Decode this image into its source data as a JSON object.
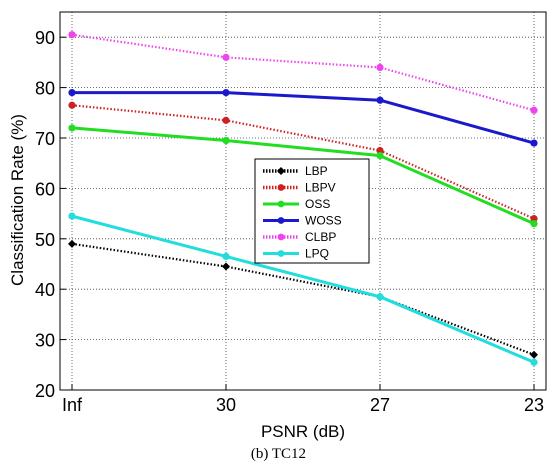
{
  "chart_data": {
    "type": "line",
    "title": "",
    "xlabel": "PSNR (dB)",
    "ylabel": "Classification Rate (%)",
    "categories": [
      "Inf",
      "30",
      "27",
      "23"
    ],
    "ylim": [
      20,
      95
    ],
    "yticks": [
      "20",
      "30",
      "40",
      "50",
      "60",
      "70",
      "80",
      "90"
    ],
    "grid": true,
    "legend_position": "center",
    "series": [
      {
        "name": "LBP",
        "values": [
          49,
          44.5,
          38.5,
          27
        ],
        "color": "#000000",
        "style": "dotted",
        "marker": "diamond"
      },
      {
        "name": "LBPV",
        "values": [
          76.5,
          73.5,
          67.5,
          54
        ],
        "color": "#cc2222",
        "style": "dotted",
        "marker": "circle"
      },
      {
        "name": "OSS",
        "values": [
          72,
          69.5,
          66.5,
          53
        ],
        "color": "#22dd22",
        "style": "solid",
        "marker": "circle"
      },
      {
        "name": "WOSS",
        "values": [
          79,
          79,
          77.5,
          69
        ],
        "color": "#1a1acc",
        "style": "solid",
        "marker": "circle"
      },
      {
        "name": "CLBP",
        "values": [
          90.5,
          86,
          84,
          75.5
        ],
        "color": "#ee44ee",
        "style": "dotted",
        "marker": "circle"
      },
      {
        "name": "LPQ",
        "values": [
          54.5,
          46.5,
          38.5,
          25.5
        ],
        "color": "#22dddd",
        "style": "solid",
        "marker": "circle"
      }
    ]
  },
  "caption": "(b) TC12"
}
